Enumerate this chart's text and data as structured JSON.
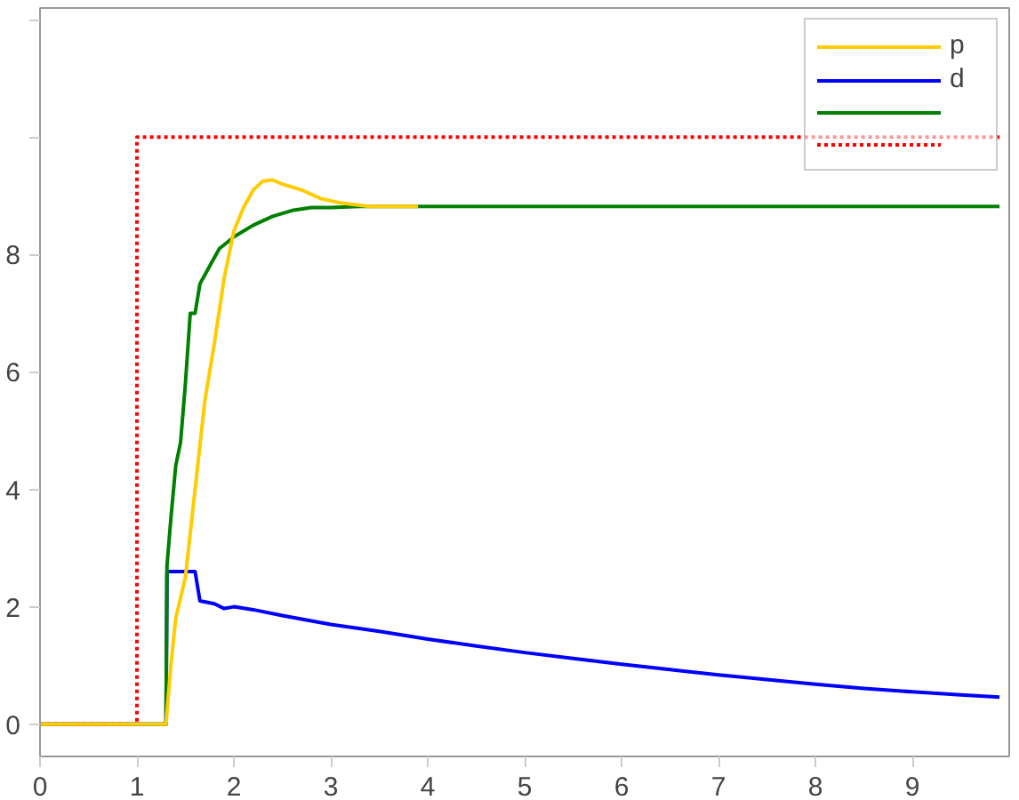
{
  "chart_data": {
    "type": "line",
    "xlim": [
      0,
      10
    ],
    "ylim": [
      -0.55,
      12.2
    ],
    "xticks": [
      0,
      1,
      2,
      3,
      4,
      5,
      6,
      7,
      8,
      9
    ],
    "yticks": [
      0,
      2,
      4,
      6,
      8,
      {
        "value": 10,
        "label": null
      },
      {
        "value": 12,
        "label": null
      }
    ],
    "grid": false,
    "legend": "top right",
    "line_style": "solid",
    "series": [
      {
        "name": "p",
        "color": "#ffcc00",
        "x": [
          0,
          1.3,
          1.35,
          1.4,
          1.5,
          1.6,
          1.7,
          1.8,
          1.9,
          2.0,
          2.1,
          2.2,
          2.3,
          2.4,
          2.5,
          2.7,
          2.9,
          3.1,
          3.4,
          3.9
        ],
        "values": [
          0,
          0,
          1.0,
          1.8,
          2.5,
          4.0,
          5.5,
          6.5,
          7.6,
          8.4,
          8.8,
          9.1,
          9.25,
          9.27,
          9.2,
          9.1,
          8.95,
          8.88,
          8.82,
          8.82
        ]
      },
      {
        "name": "d",
        "color": "#0000ff",
        "x": [
          0,
          1.3,
          1.31,
          1.6,
          1.65,
          1.8,
          1.9,
          2.0,
          2.2,
          2.5,
          3,
          3.5,
          4,
          4.5,
          5,
          5.5,
          6,
          6.5,
          7,
          7.5,
          8,
          8.5,
          9,
          9.5,
          9.9
        ],
        "values": [
          0,
          0,
          2.6,
          2.6,
          2.1,
          2.05,
          1.97,
          2.0,
          1.95,
          1.85,
          1.7,
          1.58,
          1.45,
          1.33,
          1.22,
          1.12,
          1.02,
          0.93,
          0.84,
          0.76,
          0.68,
          0.61,
          0.55,
          0.5,
          0.46
        ]
      },
      {
        "color": "#008000",
        "x": [
          0,
          1.3,
          1.31,
          1.35,
          1.4,
          1.45,
          1.5,
          1.55,
          1.6,
          1.65,
          1.75,
          1.85,
          2.0,
          2.2,
          2.4,
          2.6,
          2.8,
          3.0,
          3.3,
          9.9
        ],
        "values": [
          0,
          0,
          2.7,
          3.5,
          4.4,
          4.8,
          5.8,
          7.0,
          7.0,
          7.5,
          7.8,
          8.1,
          8.3,
          8.5,
          8.65,
          8.75,
          8.8,
          8.8,
          8.82,
          8.82
        ]
      },
      {
        "color": "#ff0000",
        "line_style": "dotted",
        "x": [
          0,
          1,
          1,
          9.9
        ],
        "values": [
          0,
          0,
          10,
          10
        ]
      }
    ]
  }
}
